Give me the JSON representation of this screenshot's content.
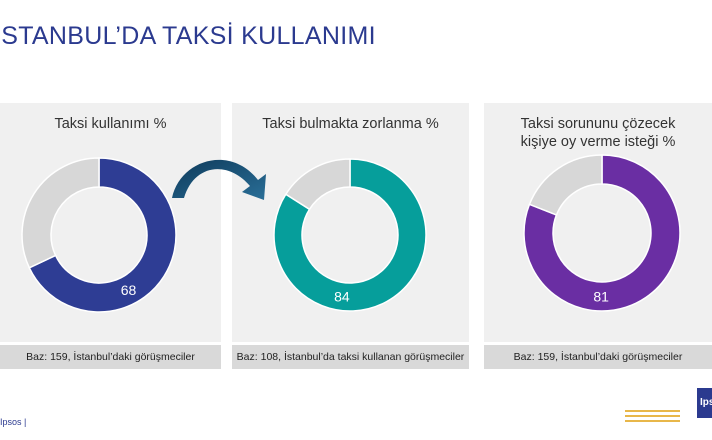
{
  "title": "İSTANBUL’DA TAKSİ KULLANIMI",
  "panels": [
    {
      "title_lines": [
        "Taksi kullanımı %"
      ],
      "base": "Baz: 159, İstanbul’daki görüşmeciler",
      "color": "#2e3d94"
    },
    {
      "title_lines": [
        "Taksi bulmakta zorlanma %"
      ],
      "base": "Baz: 108, İstanbul’da taksi kullanan görüşmeciler",
      "color": "#069e9b"
    },
    {
      "title_lines": [
        "Taksi sorununu çözecek",
        "kişiye oy verme isteği %"
      ],
      "base": "Baz: 159, İstanbul’daki görüşmeciler",
      "color": "#6a2ea3"
    }
  ],
  "chart_data": [
    {
      "type": "pie",
      "title": "Taksi kullanımı %",
      "values": [
        68,
        32
      ],
      "labels": [
        "68",
        ""
      ],
      "colors": [
        "#2e3d94",
        "#d7d7d7"
      ]
    },
    {
      "type": "pie",
      "title": "Taksi bulmakta zorlanma %",
      "values": [
        84,
        16
      ],
      "labels": [
        "84",
        ""
      ],
      "colors": [
        "#069e9b",
        "#d7d7d7"
      ]
    },
    {
      "type": "pie",
      "title": "Taksi sorununu çözecek kişiye oy verme isteği %",
      "values": [
        81,
        19
      ],
      "labels": [
        "81",
        ""
      ],
      "colors": [
        "#6a2ea3",
        "#d7d7d7"
      ]
    }
  ],
  "arrow": {
    "icon": "curved-arrow-icon",
    "color": "#1f3d66"
  },
  "footer": {
    "brand": "Ipsos |",
    "logo_text": "Ips"
  }
}
